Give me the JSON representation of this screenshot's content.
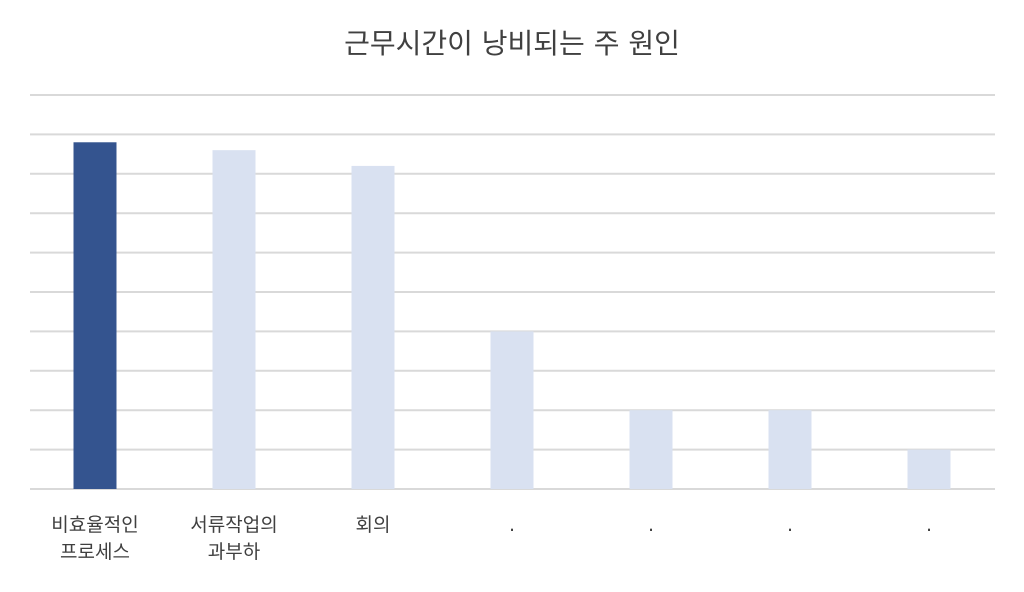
{
  "chart_data": {
    "type": "bar",
    "title": "근무시간이 낭비되는 주 원인",
    "categories": [
      [
        "비효율적인",
        "프로세스"
      ],
      [
        "서류작업의",
        "과부하"
      ],
      [
        "회의"
      ],
      [
        "."
      ],
      [
        "."
      ],
      [
        "."
      ],
      [
        "."
      ]
    ],
    "values": [
      8.8,
      8.6,
      8.2,
      4,
      2,
      2,
      1
    ],
    "ylim": [
      0,
      10
    ],
    "grid": true,
    "y_tick_labels_shown": false,
    "highlight_index": 0,
    "colors": {
      "highlight": "#34548f",
      "default": "#d9e1f1",
      "grid": "#d9d9d9",
      "text": "#404040"
    }
  }
}
